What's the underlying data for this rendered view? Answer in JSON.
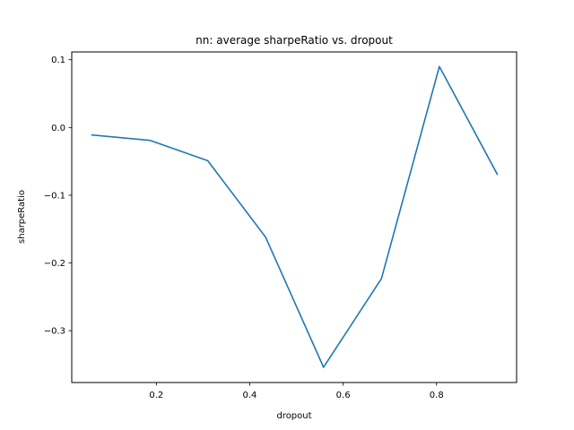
{
  "chart_data": {
    "type": "line",
    "title": "nn: average sharpeRatio vs. dropout",
    "xlabel": "dropout",
    "ylabel": "sharpeRatio",
    "xlim": [
      0.0188,
      0.9714
    ],
    "ylim": [
      -0.3765,
      0.1115
    ],
    "x_ticks": [
      0.2,
      0.4,
      0.6,
      0.8
    ],
    "x_tick_labels": [
      "0.2",
      "0.4",
      "0.6",
      "0.8"
    ],
    "y_ticks": [
      0.1,
      0.0,
      -0.1,
      -0.2,
      -0.3
    ],
    "y_tick_labels": [
      "0.1",
      "0.0",
      "−0.1",
      "−0.2",
      "−0.3"
    ],
    "grid": false,
    "series": [
      {
        "color": "#1f77b4",
        "x": [
          0.062,
          0.186,
          0.31,
          0.434,
          0.558,
          0.682,
          0.806,
          0.93
        ],
        "y": [
          -0.011,
          -0.019,
          -0.049,
          -0.162,
          -0.354,
          -0.223,
          0.09,
          -0.069
        ]
      }
    ]
  }
}
